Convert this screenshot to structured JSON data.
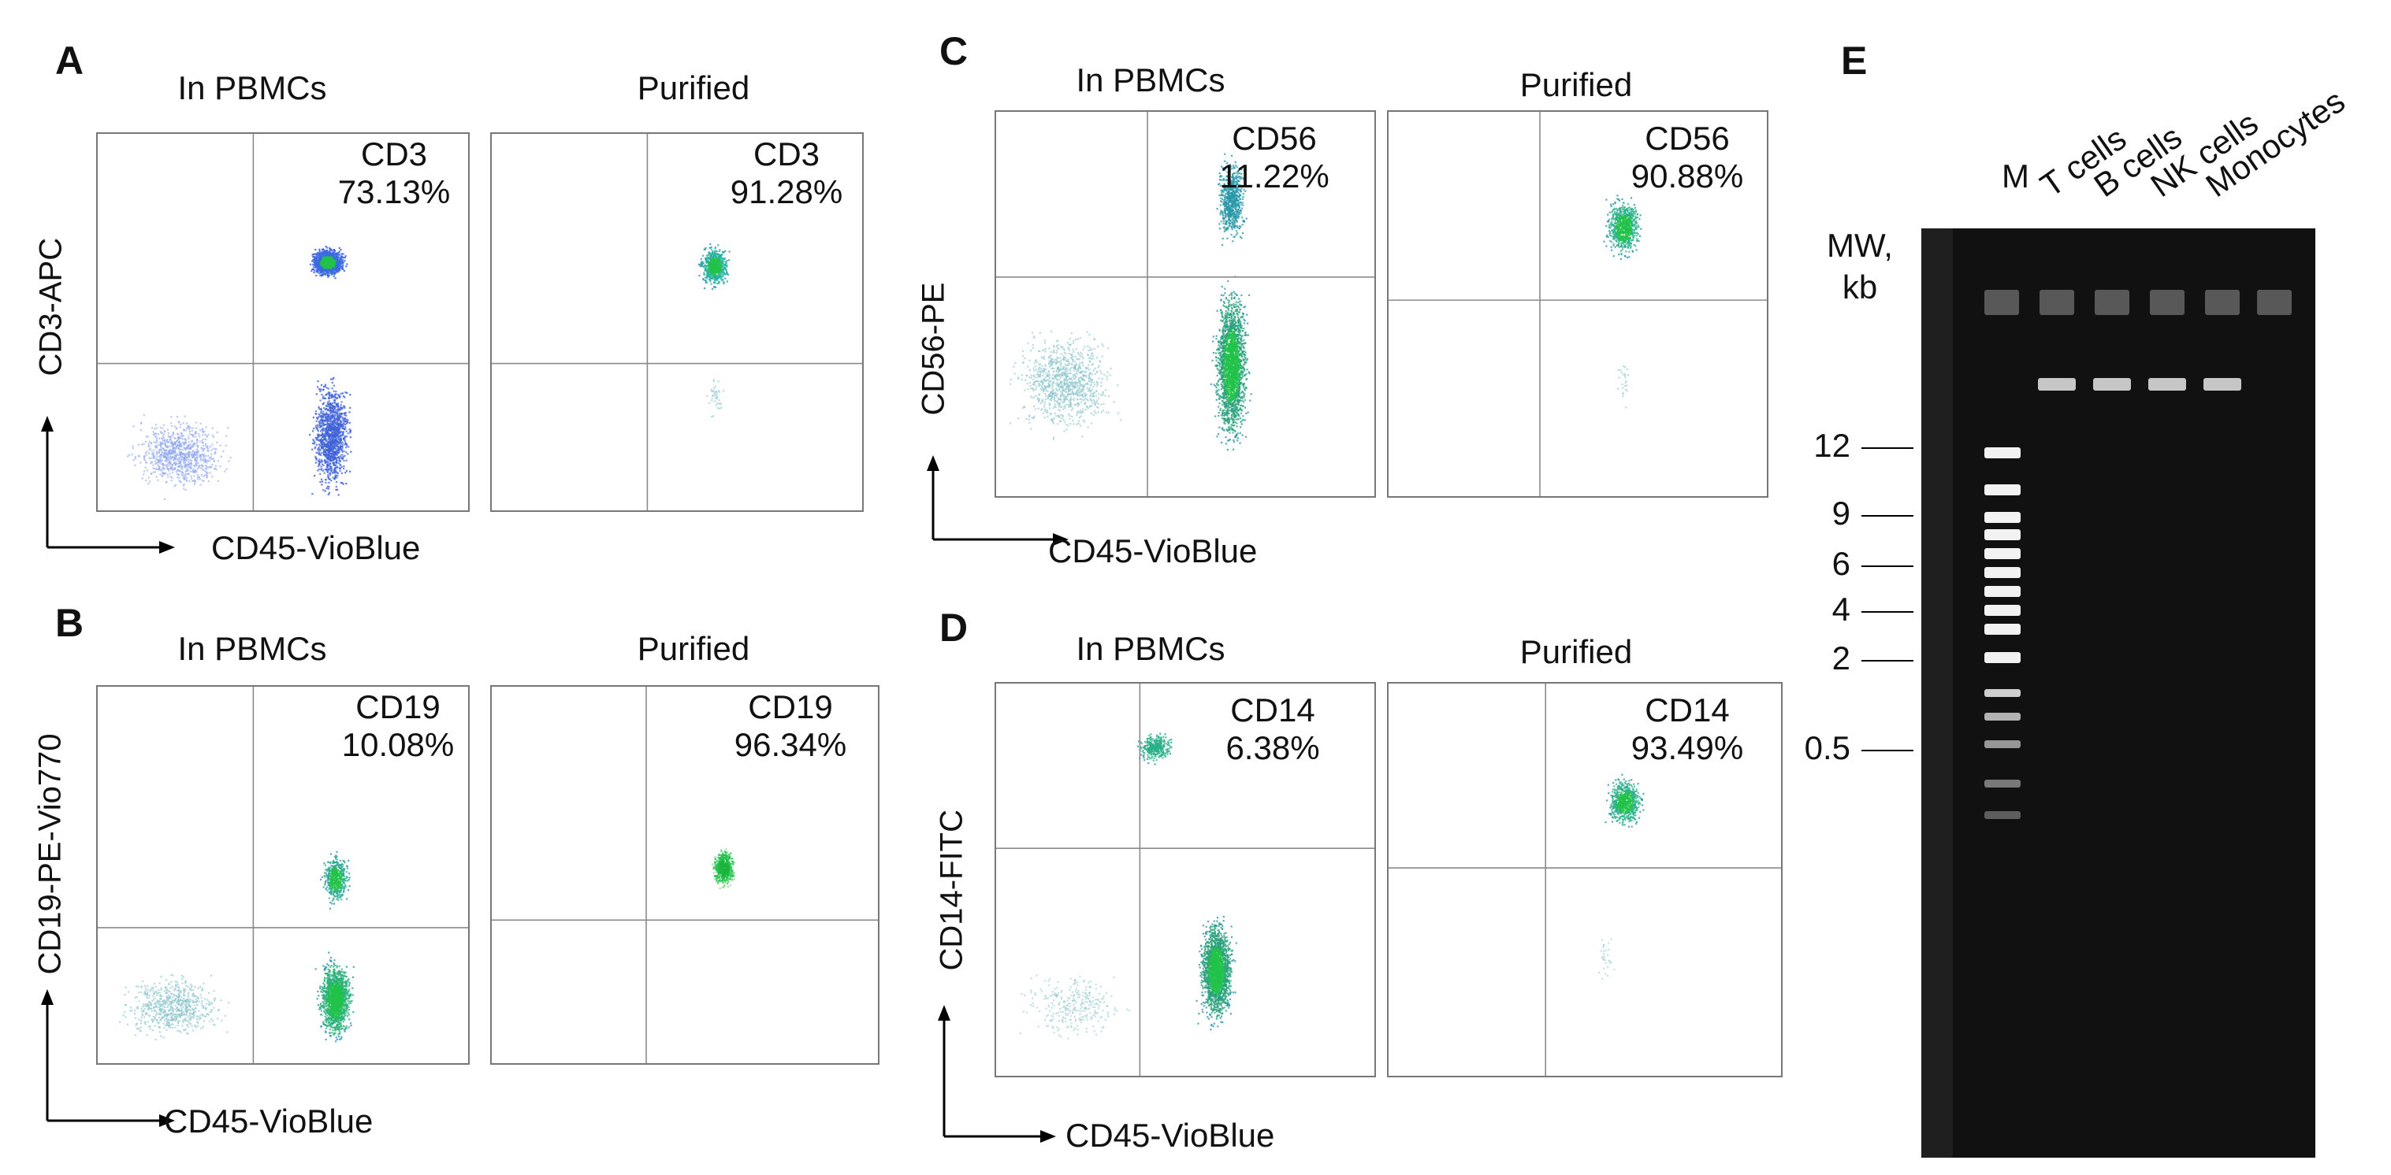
{
  "panels": {
    "A": {
      "letter": "A",
      "left_title": "In PBMCs",
      "right_title": "Purified",
      "left_gate_marker": "CD3",
      "left_gate_pct": "73.13%",
      "right_gate_marker": "CD3",
      "right_gate_pct": "91.28%",
      "y_axis": "CD3-APC",
      "x_axis": "CD45-VioBlue"
    },
    "B": {
      "letter": "B",
      "left_title": "In PBMCs",
      "right_title": "Purified",
      "left_gate_marker": "CD19",
      "left_gate_pct": "10.08%",
      "right_gate_marker": "CD19",
      "right_gate_pct": "96.34%",
      "y_axis": "CD19-PE-Vio770",
      "x_axis": "CD45-VioBlue"
    },
    "C": {
      "letter": "C",
      "left_title": "In PBMCs",
      "right_title": "Purified",
      "left_gate_marker": "CD56",
      "left_gate_pct": "11.22%",
      "right_gate_marker": "CD56",
      "right_gate_pct": "90.88%",
      "y_axis": "CD56-PE",
      "x_axis": "CD45-VioBlue"
    },
    "D": {
      "letter": "D",
      "left_title": "In PBMCs",
      "right_title": "Purified",
      "left_gate_marker": "CD14",
      "left_gate_pct": "6.38%",
      "right_gate_marker": "CD14",
      "right_gate_pct": "93.49%",
      "y_axis": "CD14-FITC",
      "x_axis": "CD45-VioBlue"
    },
    "E": {
      "letter": "E",
      "mw_header_1": "MW,",
      "mw_header_2": "kb",
      "lanes": [
        "M",
        "T cells",
        "B cells",
        "NK cells",
        "Monocytes"
      ],
      "mw_marks": [
        "12",
        "9",
        "6",
        "4",
        "2",
        "0.5"
      ]
    }
  },
  "colors": {
    "dot_blue": "#2b4fd6",
    "dot_teal": "#1f8fa0",
    "dot_green": "#22c24a",
    "gate_line": "#8a8a8a",
    "gel_bg": "#121212"
  }
}
